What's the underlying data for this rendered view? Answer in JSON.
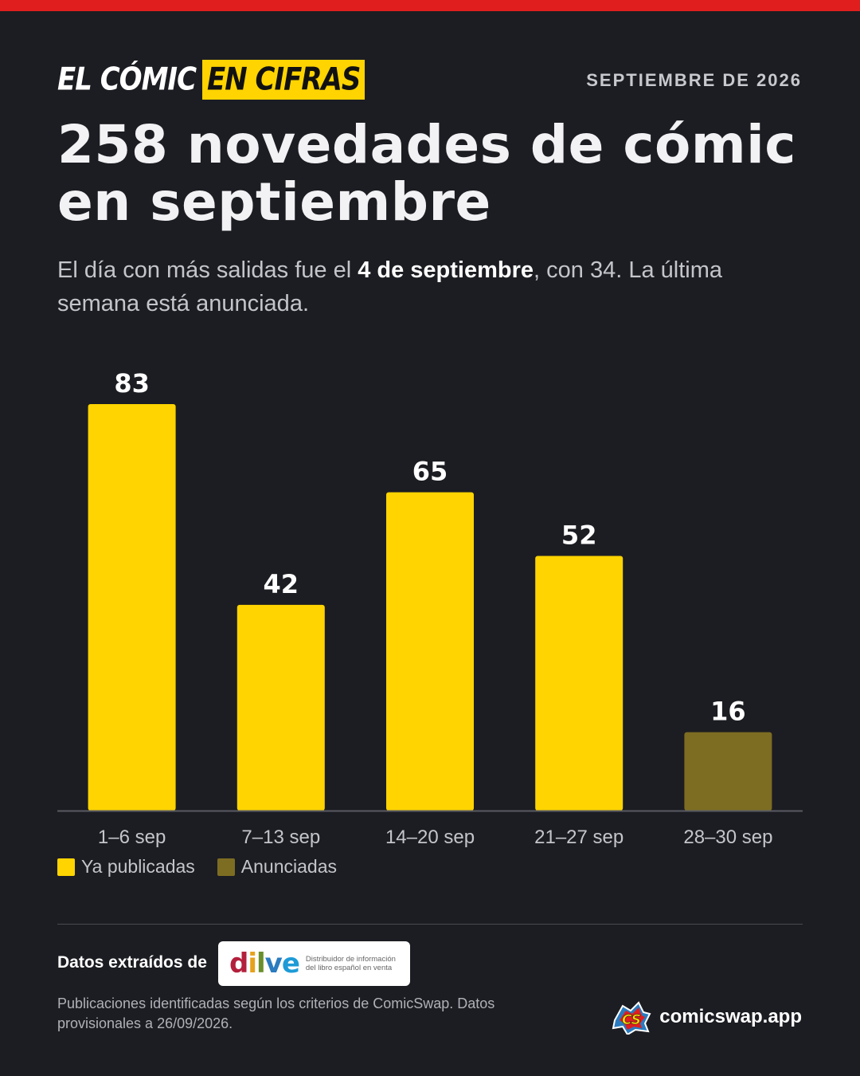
{
  "colors": {
    "accent_red": "#e01e1e",
    "published": "#ffd400",
    "announced": "#7d6d22",
    "background": "#1c1d22"
  },
  "header": {
    "brand_part1": "EL CÓMIC",
    "brand_part2": "EN CIFRAS",
    "date": "SEPTIEMBRE DE 2026",
    "title": "258 novedades de cómic en septiembre",
    "subtitle_before": "El día con más salidas fue el ",
    "subtitle_bold": "4 de septiembre",
    "subtitle_after": ", con 34. La última semana está anunciada."
  },
  "chart_data": {
    "type": "bar",
    "categories": [
      "1–6 sep",
      "7–13 sep",
      "14–20 sep",
      "21–27 sep",
      "28–30 sep"
    ],
    "values": [
      83,
      42,
      65,
      52,
      16
    ],
    "status": [
      "published",
      "published",
      "published",
      "published",
      "announced"
    ],
    "legend": [
      {
        "label": "Ya publicadas",
        "color": "#ffd400"
      },
      {
        "label": "Anunciadas",
        "color": "#7d6d22"
      }
    ],
    "legend_position": "bottom-left",
    "ylim": [
      0,
      83
    ],
    "grid": false
  },
  "footer": {
    "source_label": "Datos extraídos de",
    "dilve_logo": {
      "d": "d",
      "i": "i",
      "l": "l",
      "v": "v",
      "e": "e",
      "tagline_1": "Distribuidor de información",
      "tagline_2": "del libro español en venta"
    },
    "note": "Publicaciones identificadas según los criterios de ComicSwap. Datos provisionales a 26/09/2026.",
    "site": "comicswap.app",
    "logo_icon": "comicswap-logo-icon"
  }
}
